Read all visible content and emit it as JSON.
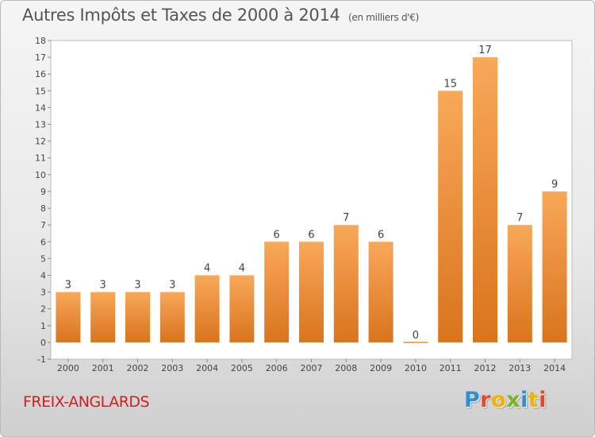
{
  "header": {
    "title": "Autres Impôts et Taxes de 2000 à 2014",
    "unit": "(en milliers d'€)"
  },
  "footer": {
    "commune": "FREIX-ANGLARDS",
    "logo_text": "Proxiti",
    "logo_colors": [
      "#2e8fd8",
      "#e8462a",
      "#f0b400",
      "#79b528",
      "#2e8fd8",
      "#f0b400",
      "#e8462a"
    ]
  },
  "chart_data": {
    "type": "bar",
    "title": "Autres Impôts et Taxes de 2000 à 2014",
    "subtitle": "(en milliers d'€)",
    "categories": [
      "2000",
      "2001",
      "2002",
      "2003",
      "2004",
      "2005",
      "2006",
      "2007",
      "2008",
      "2009",
      "2010",
      "2011",
      "2012",
      "2013",
      "2014"
    ],
    "values": [
      3,
      3,
      3,
      3,
      4,
      4,
      6,
      6,
      7,
      6,
      0,
      15,
      17,
      7,
      9
    ],
    "data_labels": [
      "3",
      "3",
      "3",
      "3",
      "4",
      "4",
      "6",
      "6",
      "7",
      "6",
      "0",
      "15",
      "17",
      "7",
      "9"
    ],
    "y_ticks": [
      "-1",
      "0",
      "1",
      "2",
      "3",
      "4",
      "5",
      "6",
      "7",
      "8",
      "9",
      "10",
      "11",
      "12",
      "13",
      "14",
      "15",
      "16",
      "17",
      "18"
    ],
    "ylim": [
      -1,
      18
    ],
    "grid": false,
    "bar_color": "#f0923a"
  }
}
